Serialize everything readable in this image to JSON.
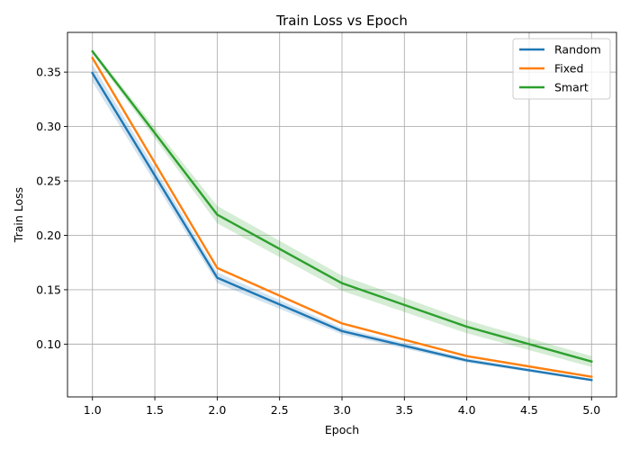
{
  "chart_data": {
    "type": "line",
    "title": "Train Loss vs Epoch",
    "xlabel": "Epoch",
    "ylabel": "Train Loss",
    "xlim": [
      0.8,
      5.2
    ],
    "ylim": [
      0.0515,
      0.3865
    ],
    "xticks": [
      "1.0",
      "1.5",
      "2.0",
      "2.5",
      "3.0",
      "3.5",
      "4.0",
      "4.5",
      "5.0"
    ],
    "yticks": [
      "0.10",
      "0.15",
      "0.20",
      "0.25",
      "0.30",
      "0.35"
    ],
    "grid": true,
    "legend_position": "top-right",
    "x": [
      1,
      2,
      3,
      4,
      5
    ],
    "series": [
      {
        "name": "Random",
        "color": "#1f77b4",
        "values": [
          0.349,
          0.161,
          0.112,
          0.085,
          0.067
        ],
        "band_lower": [
          0.341,
          0.156,
          0.109,
          0.083,
          0.066
        ],
        "band_upper": [
          0.357,
          0.166,
          0.115,
          0.087,
          0.068
        ]
      },
      {
        "name": "Fixed",
        "color": "#ff7f0e",
        "values": [
          0.363,
          0.17,
          0.119,
          0.089,
          0.07
        ],
        "band_lower": [
          0.361,
          0.169,
          0.118,
          0.088,
          0.069
        ],
        "band_upper": [
          0.365,
          0.171,
          0.12,
          0.09,
          0.071
        ]
      },
      {
        "name": "Smart",
        "color": "#2ca02c",
        "values": [
          0.369,
          0.219,
          0.156,
          0.116,
          0.084
        ],
        "band_lower": [
          0.367,
          0.211,
          0.149,
          0.11,
          0.079
        ],
        "band_upper": [
          0.371,
          0.227,
          0.163,
          0.122,
          0.089
        ]
      }
    ]
  }
}
